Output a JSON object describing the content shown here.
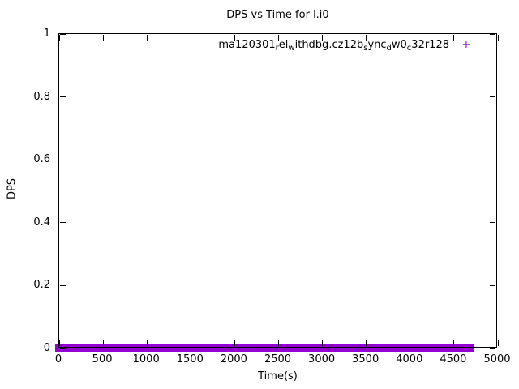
{
  "chart": {
    "title": "DPS vs Time for l.i0",
    "xlabel": "Time(s)",
    "ylabel": "DPS",
    "background_color": "#ffffff",
    "border_color": "#000000",
    "text_color": "#000000",
    "legend": {
      "marker": "+",
      "marker_color": "#9400d3",
      "label_plain": "ma120301_rel_withdbg.cz12b_sync_dw0_c32r128",
      "label_segments": [
        {
          "text": "ma120301",
          "sub": false
        },
        {
          "text": "r",
          "sub": true
        },
        {
          "text": "el",
          "sub": false
        },
        {
          "text": "w",
          "sub": true
        },
        {
          "text": "ithdbg.cz12b",
          "sub": false
        },
        {
          "text": "s",
          "sub": true
        },
        {
          "text": "ync",
          "sub": false
        },
        {
          "text": "d",
          "sub": true
        },
        {
          "text": "w0",
          "sub": false
        },
        {
          "text": "c",
          "sub": true
        },
        {
          "text": "32r128",
          "sub": false
        }
      ]
    }
  },
  "chart_data": {
    "type": "scatter",
    "title": "DPS vs Time for l.i0",
    "xlabel": "Time(s)",
    "ylabel": "DPS",
    "xlim": [
      0,
      5000
    ],
    "ylim": [
      0,
      1
    ],
    "xticks": [
      0,
      500,
      1000,
      1500,
      2000,
      2500,
      3000,
      3500,
      4000,
      4500,
      5000
    ],
    "yticks": [
      0,
      0.2,
      0.4,
      0.6,
      0.8,
      1
    ],
    "grid": false,
    "legend_position": "top-right-inside",
    "series": [
      {
        "name": "ma120301_rel_withdbg.cz12b_sync_dw0_c32r128",
        "marker": "+",
        "marker_size_px": 9,
        "color": "#9400d3",
        "x_start": 0,
        "x_end": 4700,
        "y_value": 0,
        "description": "Dense overlapping + markers at DPS = 0 across the whole time range, forming a solid horizontal purple band along the x-axis."
      }
    ]
  }
}
